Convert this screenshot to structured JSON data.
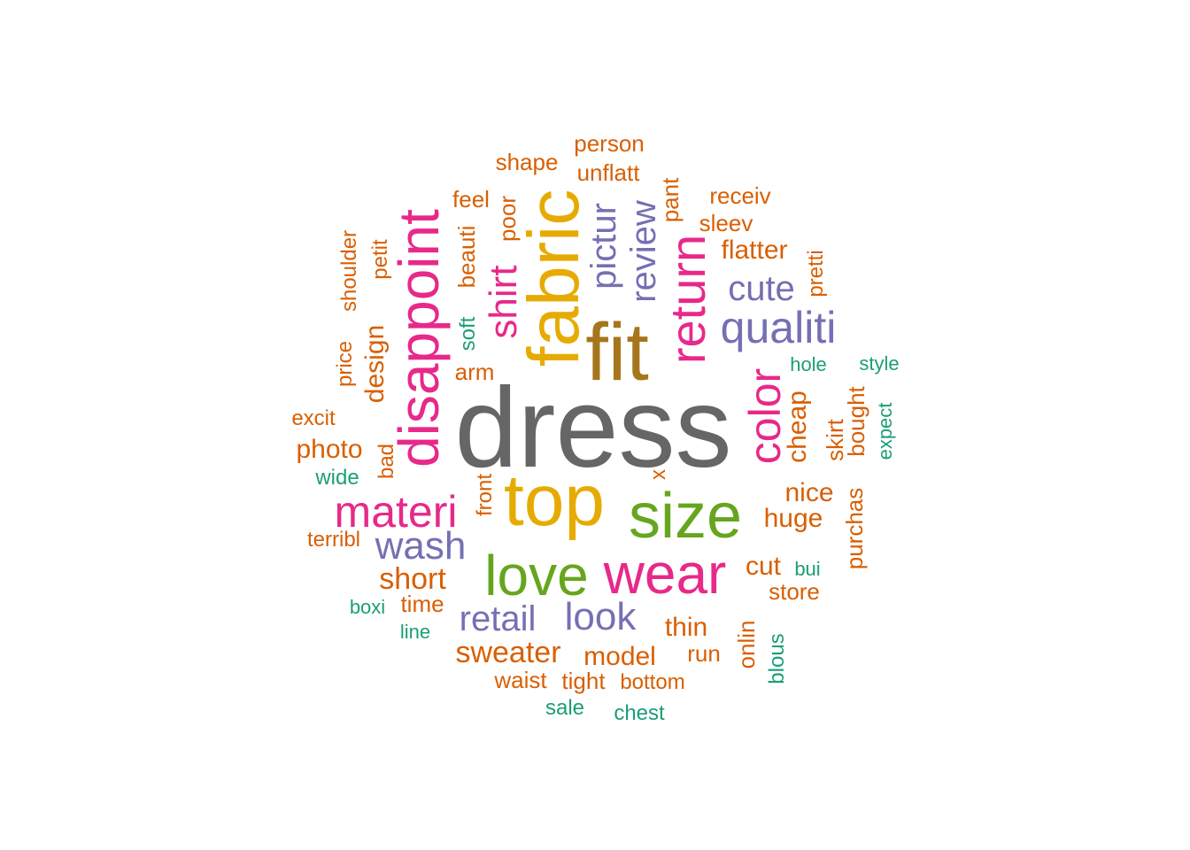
{
  "word_cloud": {
    "words": [
      {
        "text": "dress",
        "color": "#666666"
      },
      {
        "text": "fit",
        "color": "#A6761D"
      },
      {
        "text": "fabric",
        "color": "#E6AB02"
      },
      {
        "text": "top",
        "color": "#E6AB02"
      },
      {
        "text": "size",
        "color": "#66A61E"
      },
      {
        "text": "love",
        "color": "#66A61E"
      },
      {
        "text": "wear",
        "color": "#E7298A"
      },
      {
        "text": "disappoint",
        "color": "#E7298A"
      },
      {
        "text": "materi",
        "color": "#E7298A"
      },
      {
        "text": "return",
        "color": "#E7298A"
      },
      {
        "text": "color",
        "color": "#E7298A"
      },
      {
        "text": "shirt",
        "color": "#E7298A"
      },
      {
        "text": "qualiti",
        "color": "#7570B3"
      },
      {
        "text": "wash",
        "color": "#7570B3"
      },
      {
        "text": "look",
        "color": "#7570B3"
      },
      {
        "text": "retail",
        "color": "#7570B3"
      },
      {
        "text": "review",
        "color": "#7570B3"
      },
      {
        "text": "pictur",
        "color": "#7570B3"
      },
      {
        "text": "cute",
        "color": "#7570B3"
      },
      {
        "text": "short",
        "color": "#D95F02"
      },
      {
        "text": "sweater",
        "color": "#D95F02"
      },
      {
        "text": "cheap",
        "color": "#D95F02"
      },
      {
        "text": "nice",
        "color": "#D95F02"
      },
      {
        "text": "huge",
        "color": "#D95F02"
      },
      {
        "text": "cut",
        "color": "#D95F02"
      },
      {
        "text": "thin",
        "color": "#D95F02"
      },
      {
        "text": "model",
        "color": "#D95F02"
      },
      {
        "text": "design",
        "color": "#D95F02"
      },
      {
        "text": "photo",
        "color": "#D95F02"
      },
      {
        "text": "flatter",
        "color": "#D95F02"
      },
      {
        "text": "beauti",
        "color": "#D95F02"
      },
      {
        "text": "skirt",
        "color": "#D95F02"
      },
      {
        "text": "purchas",
        "color": "#D95F02"
      },
      {
        "text": "bought",
        "color": "#D95F02"
      },
      {
        "text": "unflatt",
        "color": "#D95F02"
      },
      {
        "text": "pant",
        "color": "#D95F02"
      },
      {
        "text": "sleev",
        "color": "#D95F02"
      },
      {
        "text": "shape",
        "color": "#D95F02"
      },
      {
        "text": "person",
        "color": "#D95F02"
      },
      {
        "text": "receiv",
        "color": "#D95F02"
      },
      {
        "text": "feel",
        "color": "#D95F02"
      },
      {
        "text": "poor",
        "color": "#D95F02"
      },
      {
        "text": "petit",
        "color": "#D95F02"
      },
      {
        "text": "shoulder",
        "color": "#D95F02"
      },
      {
        "text": "price",
        "color": "#D95F02"
      },
      {
        "text": "pretti",
        "color": "#D95F02"
      },
      {
        "text": "arm",
        "color": "#D95F02"
      },
      {
        "text": "excit",
        "color": "#D95F02"
      },
      {
        "text": "bad",
        "color": "#D95F02"
      },
      {
        "text": "terribl",
        "color": "#D95F02"
      },
      {
        "text": "front",
        "color": "#D95F02"
      },
      {
        "text": "x",
        "color": "#D95F02"
      },
      {
        "text": "time",
        "color": "#D95F02"
      },
      {
        "text": "store",
        "color": "#D95F02"
      },
      {
        "text": "run",
        "color": "#D95F02"
      },
      {
        "text": "onlin",
        "color": "#D95F02"
      },
      {
        "text": "waist",
        "color": "#D95F02"
      },
      {
        "text": "tight",
        "color": "#D95F02"
      },
      {
        "text": "bottom",
        "color": "#D95F02"
      },
      {
        "text": "soft",
        "color": "#1B9E77"
      },
      {
        "text": "hole",
        "color": "#1B9E77"
      },
      {
        "text": "style",
        "color": "#1B9E77"
      },
      {
        "text": "expect",
        "color": "#1B9E77"
      },
      {
        "text": "wide",
        "color": "#1B9E77"
      },
      {
        "text": "bui",
        "color": "#1B9E77"
      },
      {
        "text": "boxi",
        "color": "#1B9E77"
      },
      {
        "text": "line",
        "color": "#1B9E77"
      },
      {
        "text": "blous",
        "color": "#1B9E77"
      },
      {
        "text": "sale",
        "color": "#1B9E77"
      },
      {
        "text": "chest",
        "color": "#1B9E77"
      }
    ]
  }
}
